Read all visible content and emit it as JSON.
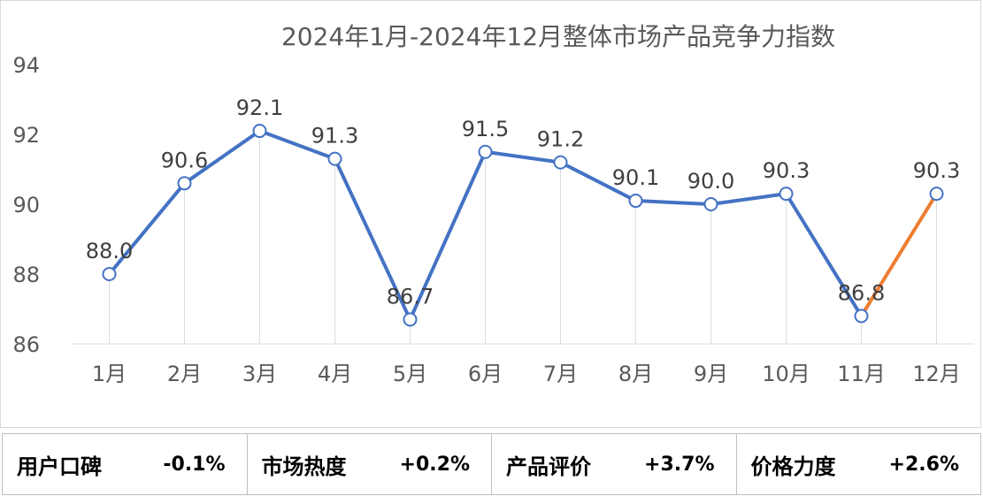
{
  "chart_data": {
    "type": "line",
    "title": "2024年1月-2024年12月整体市场产品竞争力指数",
    "categories": [
      "1月",
      "2月",
      "3月",
      "4月",
      "5月",
      "6月",
      "7月",
      "8月",
      "9月",
      "10月",
      "11月",
      "12月"
    ],
    "series": [
      {
        "values": [
          88.0,
          90.6,
          92.1,
          91.3,
          86.7,
          91.5,
          91.2,
          90.1,
          90.0,
          90.3,
          86.8,
          90.3
        ],
        "labels": [
          "88.0",
          "90.6",
          "92.1",
          "91.3",
          "86.7",
          "91.5",
          "91.2",
          "90.1",
          "90.0",
          "90.3",
          "86.8",
          "90.3"
        ]
      }
    ],
    "ylim": [
      86,
      94
    ],
    "yticks": [
      "86",
      "88",
      "90",
      "92",
      "94"
    ],
    "grid": false,
    "colors": {
      "line": "#4472c4",
      "highlight_segment": "#ed7d31",
      "marker_fill": "#ffffff"
    }
  },
  "metrics": [
    {
      "label": "用户口碑",
      "value": "-0.1%"
    },
    {
      "label": "市场热度",
      "value": "+0.2%"
    },
    {
      "label": "产品评价",
      "value": "+3.7%"
    },
    {
      "label": "价格力度",
      "value": "+2.6%"
    }
  ]
}
